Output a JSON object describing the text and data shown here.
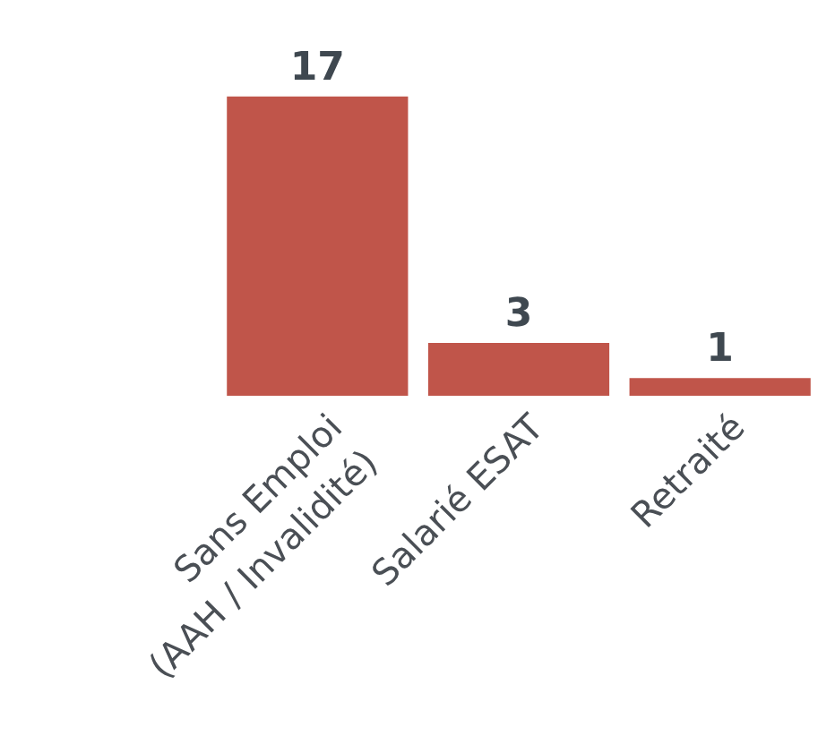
{
  "chart_data": {
    "type": "bar",
    "categories": [
      "Sans Emploi\n(AAH / Invalidité)",
      "Salarié ESAT",
      "Retraité"
    ],
    "values": [
      17,
      3,
      1
    ],
    "color": "#c0554a",
    "data_labels": true
  }
}
